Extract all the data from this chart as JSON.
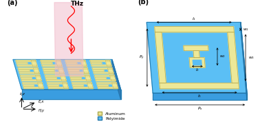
{
  "bg_color": "#ffffff",
  "panel_a_label": "(a)",
  "panel_b_label": "(b)",
  "thz_label": "THz",
  "aluminum_label": "Aluminum",
  "polyimide_label": "Polyimide",
  "aluminum_color": "#ede898",
  "polyimide_top": "#5bbff5",
  "polyimide_front": "#3a9de0",
  "polyimide_right": "#2e7bb8",
  "edge_color": "#2277aa",
  "al_edge": "#b8aa50",
  "axis_ex": "E,x",
  "axis_hy": "H,y",
  "axis_kz": "k,z"
}
